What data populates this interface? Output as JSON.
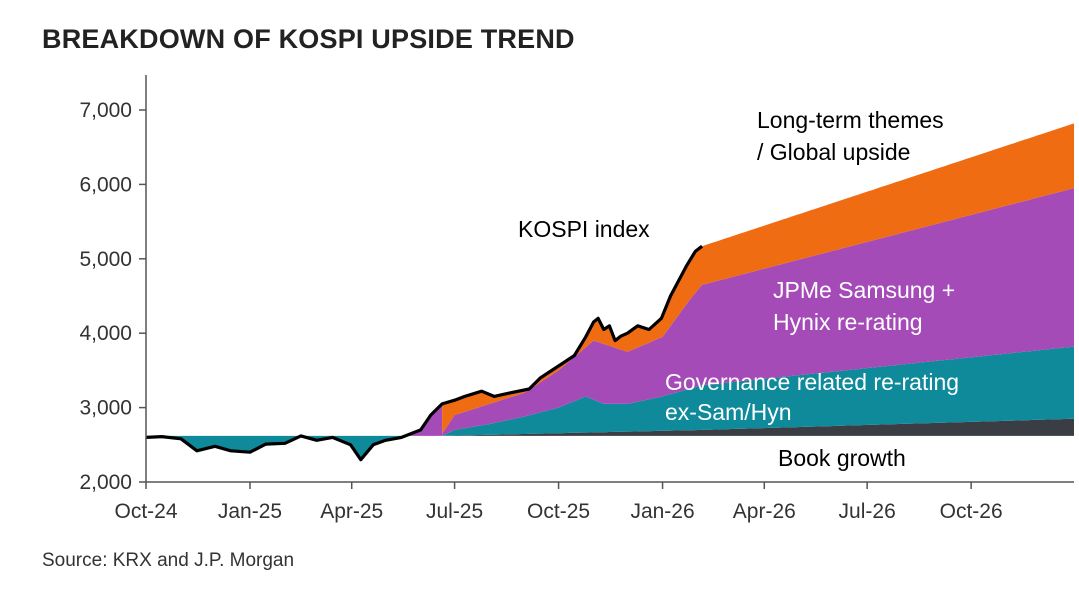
{
  "colors": {
    "book": "#3b3d45",
    "governance": "#0f8a9a",
    "samsung": "#a54bb8",
    "longterm": "#ef6c13",
    "kospi_line": "#000000",
    "axis": "#555555",
    "annotation_light": "#ffffff",
    "annotation_dark": "#000000"
  },
  "chart_data": {
    "type": "area",
    "title": "BREAKDOWN OF KOSPI UPSIDE TREND",
    "source": "Source: KRX and J.P. Morgan",
    "xlabel": "",
    "ylabel": "",
    "ylim": [
      2000,
      7000
    ],
    "y_ticks": [
      2000,
      3000,
      4000,
      5000,
      6000,
      7000
    ],
    "y_tick_labels": [
      "2,000",
      "3,000",
      "4,000",
      "5,000",
      "6,000",
      "7,000"
    ],
    "x_ticks": [
      "2024-10-01",
      "2025-01-01",
      "2025-04-01",
      "2025-07-01",
      "2025-10-01",
      "2026-01-01",
      "2026-04-01",
      "2026-07-01",
      "2026-10-01"
    ],
    "x_tick_labels": [
      "Oct-24",
      "Jan-25",
      "Apr-25",
      "Jul-25",
      "Oct-25",
      "Jan-26",
      "Apr-26",
      "Jul-26",
      "Oct-26"
    ],
    "xlim": [
      "2024-10-01",
      "2026-12-31"
    ],
    "grid": false,
    "baseline": 2620,
    "series": [
      {
        "name": "KOSPI index",
        "kind": "line",
        "points": [
          [
            "2024-10-01",
            2600
          ],
          [
            "2024-10-15",
            2610
          ],
          [
            "2024-11-01",
            2580
          ],
          [
            "2024-11-15",
            2420
          ],
          [
            "2024-12-01",
            2480
          ],
          [
            "2024-12-15",
            2420
          ],
          [
            "2025-01-01",
            2400
          ],
          [
            "2025-01-15",
            2510
          ],
          [
            "2025-02-01",
            2520
          ],
          [
            "2025-02-15",
            2620
          ],
          [
            "2025-03-01",
            2560
          ],
          [
            "2025-03-15",
            2600
          ],
          [
            "2025-03-31",
            2500
          ],
          [
            "2025-04-09",
            2300
          ],
          [
            "2025-04-20",
            2500
          ],
          [
            "2025-05-01",
            2560
          ],
          [
            "2025-05-15",
            2600
          ],
          [
            "2025-06-01",
            2700
          ],
          [
            "2025-06-10",
            2900
          ],
          [
            "2025-06-20",
            3050
          ],
          [
            "2025-07-01",
            3100
          ],
          [
            "2025-07-10",
            3150
          ],
          [
            "2025-07-25",
            3220
          ],
          [
            "2025-08-05",
            3150
          ],
          [
            "2025-08-20",
            3200
          ],
          [
            "2025-09-05",
            3250
          ],
          [
            "2025-09-15",
            3400
          ],
          [
            "2025-09-25",
            3500
          ],
          [
            "2025-10-05",
            3600
          ],
          [
            "2025-10-15",
            3700
          ],
          [
            "2025-10-25",
            3950
          ],
          [
            "2025-11-01",
            4150
          ],
          [
            "2025-11-05",
            4200
          ],
          [
            "2025-11-10",
            4050
          ],
          [
            "2025-11-15",
            4100
          ],
          [
            "2025-11-20",
            3900
          ],
          [
            "2025-11-25",
            3960
          ],
          [
            "2025-12-01",
            4000
          ],
          [
            "2025-12-10",
            4100
          ],
          [
            "2025-12-20",
            4050
          ],
          [
            "2025-12-31",
            4200
          ],
          [
            "2026-01-08",
            4500
          ],
          [
            "2026-01-15",
            4700
          ],
          [
            "2026-01-22",
            4900
          ],
          [
            "2026-01-30",
            5100
          ],
          [
            "2026-02-05",
            5170
          ]
        ]
      },
      {
        "name": "Book growth",
        "kind": "area",
        "points": [
          [
            "2025-06-20",
            2620
          ],
          [
            "2026-02-05",
            2700
          ],
          [
            "2026-12-31",
            2850
          ]
        ]
      },
      {
        "name": "Governance related re-rating ex-Sam/Hyn",
        "kind": "area",
        "points": [
          [
            "2025-06-20",
            2620
          ],
          [
            "2025-07-01",
            2700
          ],
          [
            "2025-08-01",
            2780
          ],
          [
            "2025-09-01",
            2880
          ],
          [
            "2025-10-01",
            3000
          ],
          [
            "2025-10-25",
            3150
          ],
          [
            "2025-11-10",
            3050
          ],
          [
            "2025-12-01",
            3050
          ],
          [
            "2026-01-01",
            3150
          ],
          [
            "2026-02-05",
            3300
          ],
          [
            "2026-12-31",
            3820
          ]
        ]
      },
      {
        "name": "JPMe Samsung + Hynix re-rating",
        "kind": "area",
        "points": [
          [
            "2025-06-20",
            2650
          ],
          [
            "2025-07-01",
            2900
          ],
          [
            "2025-08-01",
            3050
          ],
          [
            "2025-09-01",
            3200
          ],
          [
            "2025-10-01",
            3500
          ],
          [
            "2025-11-01",
            3900
          ],
          [
            "2025-12-01",
            3750
          ],
          [
            "2026-01-01",
            3950
          ],
          [
            "2026-01-25",
            4450
          ],
          [
            "2026-02-05",
            4650
          ],
          [
            "2026-12-31",
            5950
          ]
        ]
      },
      {
        "name": "Long-term themes / Global upside",
        "kind": "area",
        "points": [
          [
            "2026-02-05",
            5170
          ],
          [
            "2026-12-31",
            6820
          ]
        ]
      }
    ],
    "annotations": {
      "kospi": "KOSPI index",
      "longterm_1": "Long-term themes",
      "longterm_2": "/ Global upside",
      "samsung_1": "JPMe Samsung +",
      "samsung_2": "Hynix re-rating",
      "governance_1": "Governance related re-rating",
      "governance_2": "ex-Sam/Hyn",
      "book": "Book growth"
    }
  }
}
